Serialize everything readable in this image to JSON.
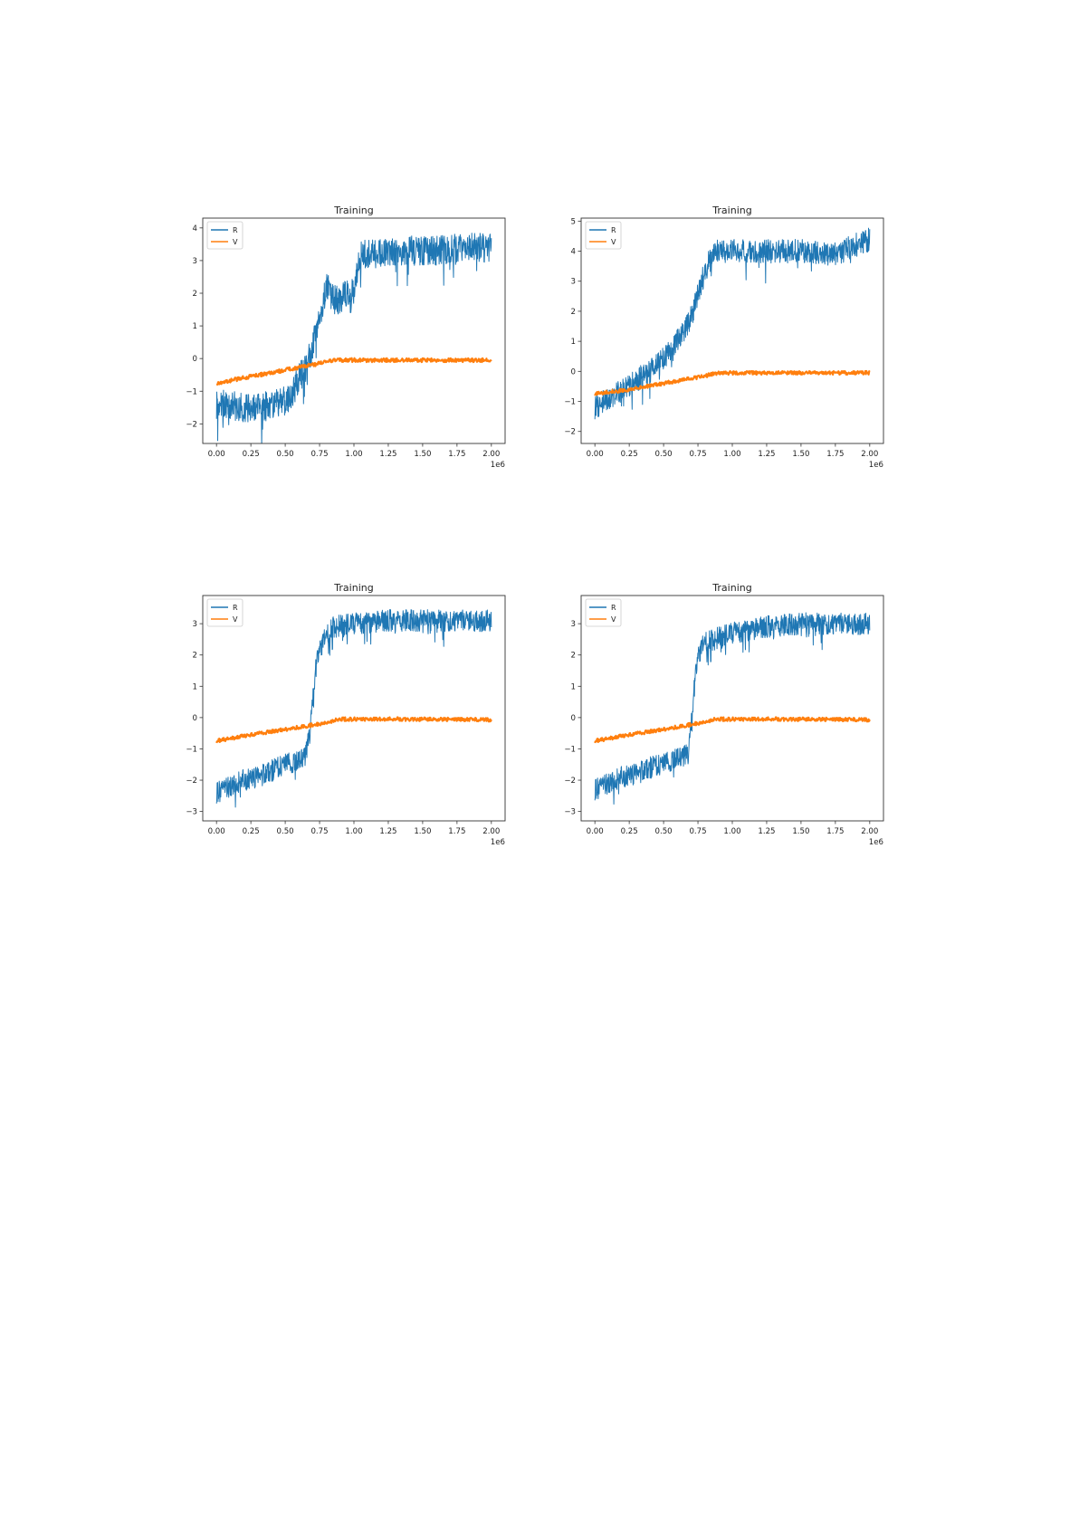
{
  "page": {
    "footer_text": ""
  },
  "chart_data": [
    {
      "type": "line",
      "title": "Training",
      "xlabel": "",
      "ylabel": "",
      "x_offset_label": "1e6",
      "xlim": [
        -0.1,
        2.1
      ],
      "ylim": [
        -2.6,
        4.3
      ],
      "xticks": [
        0.0,
        0.25,
        0.5,
        0.75,
        1.0,
        1.25,
        1.5,
        1.75,
        2.0
      ],
      "xtick_labels": [
        "0.00",
        "0.25",
        "0.50",
        "0.75",
        "1.00",
        "1.25",
        "1.50",
        "1.75",
        "2.00"
      ],
      "yticks": [
        -2,
        -1,
        0,
        1,
        2,
        3,
        4
      ],
      "ytick_labels": [
        "−2",
        "−1",
        "0",
        "1",
        "2",
        "3",
        "4"
      ],
      "legend": {
        "position": "upper left",
        "entries": [
          "R",
          "V"
        ]
      },
      "series": [
        {
          "name": "R",
          "color": "#1f77b4",
          "x": [
            0.0,
            0.1,
            0.2,
            0.3,
            0.4,
            0.5,
            0.55,
            0.6,
            0.65,
            0.7,
            0.75,
            0.8,
            0.85,
            0.9,
            0.95,
            1.0,
            1.05,
            1.2,
            1.4,
            1.6,
            1.8,
            2.0
          ],
          "values": [
            -1.4,
            -1.4,
            -1.5,
            -1.5,
            -1.4,
            -1.3,
            -1.1,
            -0.6,
            -0.3,
            0.4,
            1.3,
            2.2,
            1.8,
            1.8,
            2.0,
            2.0,
            3.2,
            3.2,
            3.3,
            3.3,
            3.4,
            3.4
          ],
          "noise": 0.45
        },
        {
          "name": "V",
          "color": "#ff7f0e",
          "x": [
            0.0,
            0.25,
            0.5,
            0.75,
            0.85,
            1.0,
            1.5,
            2.0
          ],
          "values": [
            -0.75,
            -0.55,
            -0.35,
            -0.15,
            -0.05,
            -0.05,
            -0.05,
            -0.05
          ],
          "noise": 0.06
        }
      ]
    },
    {
      "type": "line",
      "title": "Training",
      "xlabel": "",
      "ylabel": "",
      "x_offset_label": "1e6",
      "xlim": [
        -0.1,
        2.1
      ],
      "ylim": [
        -2.4,
        5.1
      ],
      "xticks": [
        0.0,
        0.25,
        0.5,
        0.75,
        1.0,
        1.25,
        1.5,
        1.75,
        2.0
      ],
      "xtick_labels": [
        "0.00",
        "0.25",
        "0.50",
        "0.75",
        "1.00",
        "1.25",
        "1.50",
        "1.75",
        "2.00"
      ],
      "yticks": [
        -2,
        -1,
        0,
        1,
        2,
        3,
        4,
        5
      ],
      "ytick_labels": [
        "−2",
        "−1",
        "0",
        "1",
        "2",
        "3",
        "4",
        "5"
      ],
      "legend": {
        "position": "upper left",
        "entries": [
          "R",
          "V"
        ]
      },
      "series": [
        {
          "name": "R",
          "color": "#1f77b4",
          "x": [
            0.0,
            0.1,
            0.2,
            0.3,
            0.4,
            0.5,
            0.6,
            0.7,
            0.75,
            0.8,
            0.85,
            0.9,
            1.0,
            1.25,
            1.5,
            1.75,
            1.9,
            2.0
          ],
          "values": [
            -1.2,
            -0.9,
            -0.6,
            -0.3,
            0.0,
            0.4,
            1.0,
            1.8,
            2.6,
            3.3,
            3.9,
            4.0,
            4.0,
            4.0,
            4.0,
            3.9,
            4.2,
            4.4
          ],
          "noise": 0.4
        },
        {
          "name": "V",
          "color": "#ff7f0e",
          "x": [
            0.0,
            0.25,
            0.5,
            0.75,
            0.9,
            1.0,
            1.5,
            2.0
          ],
          "values": [
            -0.75,
            -0.6,
            -0.4,
            -0.2,
            -0.05,
            -0.05,
            -0.05,
            -0.05
          ],
          "noise": 0.06
        }
      ]
    },
    {
      "type": "line",
      "title": "Training",
      "xlabel": "",
      "ylabel": "",
      "x_offset_label": "1e6",
      "xlim": [
        -0.1,
        2.1
      ],
      "ylim": [
        -3.3,
        3.9
      ],
      "xticks": [
        0.0,
        0.25,
        0.5,
        0.75,
        1.0,
        1.25,
        1.5,
        1.75,
        2.0
      ],
      "xtick_labels": [
        "0.00",
        "0.25",
        "0.50",
        "0.75",
        "1.00",
        "1.25",
        "1.50",
        "1.75",
        "2.00"
      ],
      "yticks": [
        -3,
        -2,
        -1,
        0,
        1,
        2,
        3
      ],
      "ytick_labels": [
        "−3",
        "−2",
        "−1",
        "0",
        "1",
        "2",
        "3"
      ],
      "legend": {
        "position": "upper left",
        "entries": [
          "R",
          "V"
        ]
      },
      "series": [
        {
          "name": "R",
          "color": "#1f77b4",
          "x": [
            0.0,
            0.1,
            0.2,
            0.3,
            0.4,
            0.5,
            0.6,
            0.65,
            0.68,
            0.7,
            0.72,
            0.75,
            0.8,
            0.85,
            1.0,
            1.25,
            1.5,
            1.75,
            2.0
          ],
          "values": [
            -2.4,
            -2.2,
            -2.0,
            -1.9,
            -1.7,
            -1.5,
            -1.4,
            -1.2,
            -0.5,
            0.5,
            1.5,
            2.2,
            2.6,
            2.9,
            3.0,
            3.1,
            3.1,
            3.1,
            3.1
          ],
          "noise": 0.35
        },
        {
          "name": "V",
          "color": "#ff7f0e",
          "x": [
            0.0,
            0.25,
            0.5,
            0.75,
            0.9,
            1.0,
            1.5,
            2.0
          ],
          "values": [
            -0.75,
            -0.55,
            -0.38,
            -0.2,
            -0.05,
            -0.05,
            -0.05,
            -0.07
          ],
          "noise": 0.06
        }
      ]
    },
    {
      "type": "line",
      "title": "Training",
      "xlabel": "",
      "ylabel": "",
      "x_offset_label": "1e6",
      "xlim": [
        -0.1,
        2.1
      ],
      "ylim": [
        -3.3,
        3.9
      ],
      "xticks": [
        0.0,
        0.25,
        0.5,
        0.75,
        1.0,
        1.25,
        1.5,
        1.75,
        2.0
      ],
      "xtick_labels": [
        "0.00",
        "0.25",
        "0.50",
        "0.75",
        "1.00",
        "1.25",
        "1.50",
        "1.75",
        "2.00"
      ],
      "yticks": [
        -3,
        -2,
        -1,
        0,
        1,
        2,
        3
      ],
      "ytick_labels": [
        "−3",
        "−2",
        "−1",
        "0",
        "1",
        "2",
        "3"
      ],
      "legend": {
        "position": "upper left",
        "entries": [
          "R",
          "V"
        ]
      },
      "series": [
        {
          "name": "R",
          "color": "#1f77b4",
          "x": [
            0.0,
            0.1,
            0.2,
            0.3,
            0.4,
            0.5,
            0.6,
            0.68,
            0.7,
            0.72,
            0.75,
            0.8,
            1.0,
            1.25,
            1.5,
            1.75,
            2.0
          ],
          "values": [
            -2.3,
            -2.1,
            -1.9,
            -1.8,
            -1.6,
            -1.5,
            -1.3,
            -1.2,
            -0.3,
            0.8,
            2.0,
            2.4,
            2.7,
            2.9,
            3.0,
            3.0,
            3.0
          ],
          "noise": 0.35
        },
        {
          "name": "V",
          "color": "#ff7f0e",
          "x": [
            0.0,
            0.25,
            0.5,
            0.75,
            0.88,
            1.0,
            1.5,
            2.0
          ],
          "values": [
            -0.75,
            -0.55,
            -0.38,
            -0.18,
            -0.05,
            -0.05,
            -0.05,
            -0.07
          ],
          "noise": 0.06
        }
      ]
    }
  ]
}
